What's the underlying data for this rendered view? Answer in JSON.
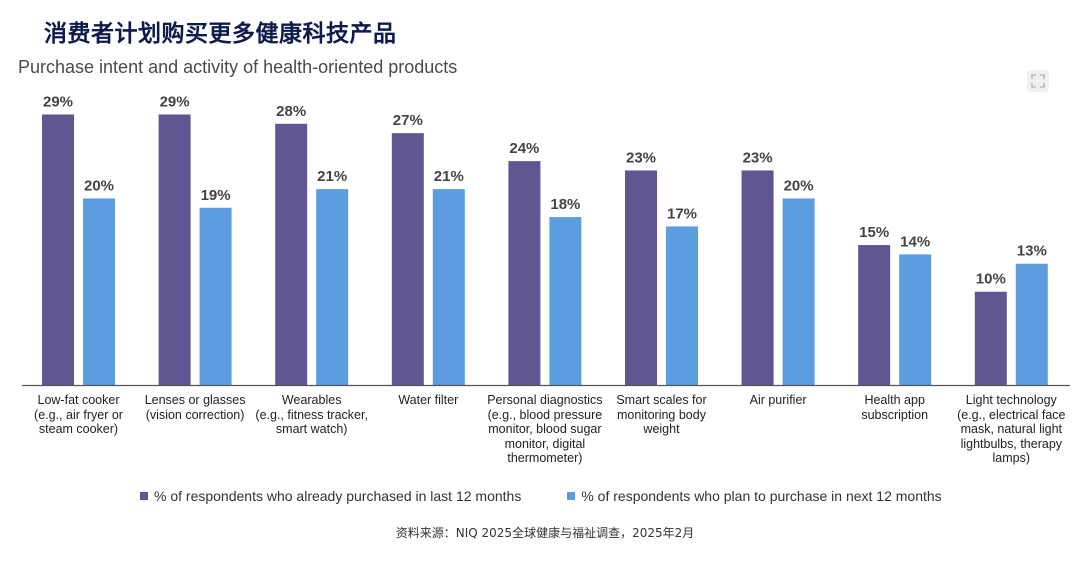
{
  "page": {
    "title": "消费者计划购买更多健康科技产品",
    "source": "资料来源：NIQ 2025全球健康与福祉调查，2025年2月"
  },
  "colors": {
    "purchased": "#615592",
    "plan": "#5b9ddf",
    "axis": "#555555",
    "label": "#444444"
  },
  "chart_data": {
    "type": "bar",
    "title": "Purchase intent and activity of health-oriented products",
    "categories": [
      "Low-fat cooker (e.g., air fryer or steam cooker)",
      "Lenses or glasses (vision correction)",
      "Wearables (e.g., fitness tracker, smart watch)",
      "Water filter",
      "Personal diagnostics (e.g., blood pressure monitor, blood sugar monitor, digital thermometer)",
      "Smart scales for monitoring body weight",
      "Air purifier",
      "Health app subscription",
      "Light technology (e.g., electrical face mask, natural light lightbulbs, therapy lamps)"
    ],
    "category_lines": [
      [
        "Low-fat cooker",
        "(e.g., air fryer or",
        "steam cooker)"
      ],
      [
        "Lenses or glasses",
        "(vision correction)"
      ],
      [
        "Wearables",
        "(e.g., fitness tracker,",
        "smart watch)"
      ],
      [
        "Water filter"
      ],
      [
        "Personal diagnostics",
        "(e.g., blood pressure",
        "monitor, blood sugar",
        "monitor, digital",
        "thermometer)"
      ],
      [
        "Smart scales for",
        "monitoring body",
        "weight"
      ],
      [
        "Air purifier"
      ],
      [
        "Health app",
        "subscription"
      ],
      [
        "Light technology",
        "(e.g., electrical face",
        "mask, natural light",
        "lightbulbs, therapy",
        "lamps)"
      ]
    ],
    "series": [
      {
        "name": "% of respondents who already purchased in last 12 months",
        "values": [
          29,
          29,
          28,
          27,
          24,
          23,
          23,
          15,
          10
        ],
        "labels": [
          "29%",
          "29%",
          "28%",
          "27%",
          "24%",
          "23%",
          "23%",
          "15%",
          "10%"
        ]
      },
      {
        "name": "% of respondents who plan to purchase in next 12 months",
        "values": [
          20,
          19,
          21,
          21,
          18,
          17,
          20,
          14,
          13
        ],
        "labels": [
          "20%",
          "19%",
          "21%",
          "21%",
          "18%",
          "17%",
          "20%",
          "14%",
          "13%"
        ]
      }
    ],
    "ylim": [
      0,
      30
    ],
    "grid": false,
    "legend_position": "bottom"
  }
}
